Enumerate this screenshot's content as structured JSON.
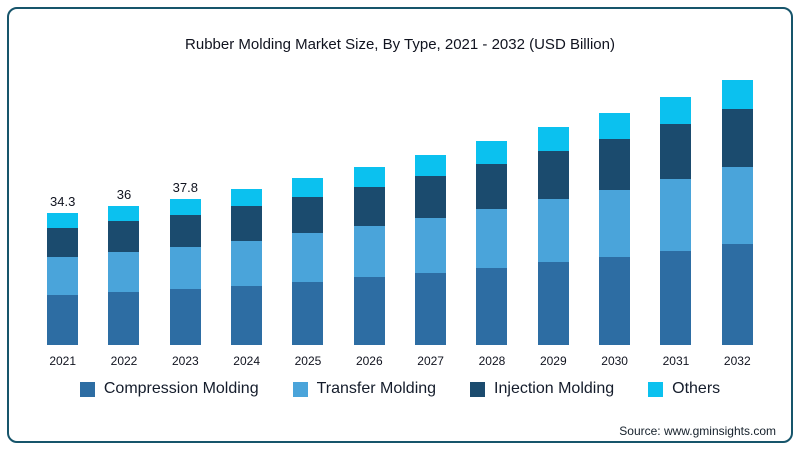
{
  "frame": {
    "border_color": "#17556b"
  },
  "source": "Source: www.gminsights.com",
  "chart_data": {
    "type": "bar",
    "stacked": true,
    "title": "Rubber Molding Market Size, By Type, 2021 - 2032 (USD Billion)",
    "unit": "USD Billion",
    "grid": false,
    "legend_position": "bottom",
    "ylim": [
      0,
      72
    ],
    "categories": [
      "2021",
      "2022",
      "2023",
      "2024",
      "2025",
      "2026",
      "2027",
      "2028",
      "2029",
      "2030",
      "2031",
      "2032"
    ],
    "total_labels": [
      "34.3",
      "36",
      "37.8",
      "",
      "",
      "",
      "",
      "",
      "",
      "",
      "",
      ""
    ],
    "totals_estimated": [
      34.3,
      36,
      37.8,
      40.3,
      43.1,
      46.0,
      49.2,
      52.6,
      56.2,
      60.1,
      64.2,
      68.6
    ],
    "series": [
      {
        "name": "Compression Molding",
        "color": "#2d6da3",
        "values": [
          13.0,
          13.7,
          14.4,
          15.3,
          16.4,
          17.5,
          18.7,
          20.0,
          21.4,
          22.8,
          24.4,
          26.1
        ]
      },
      {
        "name": "Transfer Molding",
        "color": "#4aa4da",
        "values": [
          9.9,
          10.4,
          11.0,
          11.7,
          12.5,
          13.3,
          14.3,
          15.3,
          16.3,
          17.4,
          18.6,
          19.9
        ]
      },
      {
        "name": "Injection Molding",
        "color": "#1b4b6e",
        "values": [
          7.5,
          7.9,
          8.3,
          8.9,
          9.5,
          10.1,
          10.8,
          11.6,
          12.4,
          13.2,
          14.1,
          15.1
        ]
      },
      {
        "name": "Others",
        "color": "#0bc1ef",
        "values": [
          3.8,
          4.0,
          4.2,
          4.4,
          4.7,
          5.1,
          5.4,
          5.8,
          6.2,
          6.6,
          7.1,
          7.5
        ]
      }
    ]
  }
}
